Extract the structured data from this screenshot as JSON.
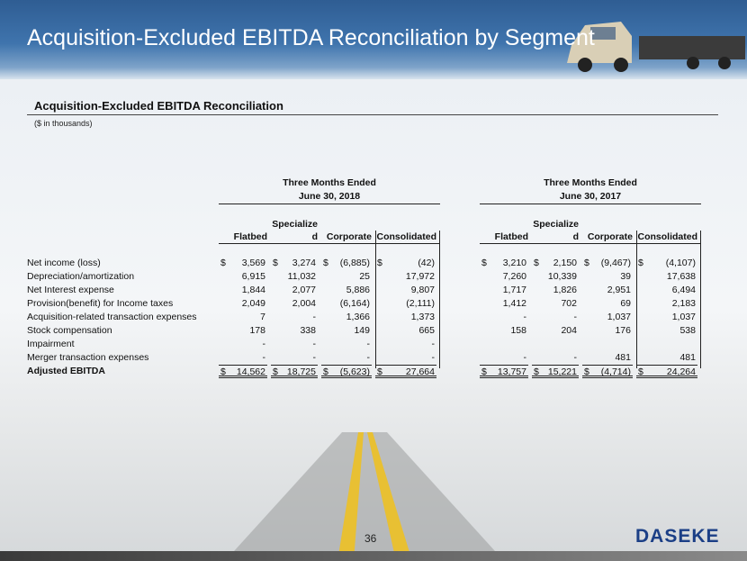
{
  "header": {
    "title": "Acquisition-Excluded EBITDA Reconciliation by Segment"
  },
  "section": {
    "title": "Acquisition-Excluded EBITDA Reconciliation",
    "note": "($ in thousands)"
  },
  "table": {
    "currency": "$",
    "periods": [
      {
        "line1": "Three Months Ended",
        "line2": "June 30, 2018"
      },
      {
        "line1": "Three Months Ended",
        "line2": "June 30, 2017"
      }
    ],
    "columns": [
      "Flatbed",
      "Specialized",
      "Corporate",
      "Consolidated"
    ],
    "rows": [
      {
        "label": "Net income (loss)",
        "dollar": true,
        "values": [
          [
            "3,569",
            "3,274",
            "(6,885)",
            "(42)"
          ],
          [
            "3,210",
            "2,150",
            "(9,467)",
            "(4,107)"
          ]
        ]
      },
      {
        "label": "Depreciation/amortization",
        "values": [
          [
            "6,915",
            "11,032",
            "25",
            "17,972"
          ],
          [
            "7,260",
            "10,339",
            "39",
            "17,638"
          ]
        ]
      },
      {
        "label": "Net Interest expense",
        "values": [
          [
            "1,844",
            "2,077",
            "5,886",
            "9,807"
          ],
          [
            "1,717",
            "1,826",
            "2,951",
            "6,494"
          ]
        ]
      },
      {
        "label": "Provision(benefit) for Income taxes",
        "values": [
          [
            "2,049",
            "2,004",
            "(6,164)",
            "(2,111)"
          ],
          [
            "1,412",
            "702",
            "69",
            "2,183"
          ]
        ]
      },
      {
        "label": "Acquisition-related transaction expenses",
        "values": [
          [
            "7",
            "-",
            "1,366",
            "1,373"
          ],
          [
            "-",
            "-",
            "1,037",
            "1,037"
          ]
        ]
      },
      {
        "label": "Stock compensation",
        "values": [
          [
            "178",
            "338",
            "149",
            "665"
          ],
          [
            "158",
            "204",
            "176",
            "538"
          ]
        ]
      },
      {
        "label": "Impairment",
        "values": [
          [
            "-",
            "-",
            "-",
            "-"
          ],
          [
            null,
            null,
            null,
            null
          ]
        ]
      },
      {
        "label": "Merger transaction expenses",
        "values": [
          [
            "-",
            "-",
            "-",
            "-"
          ],
          [
            "-",
            "-",
            "481",
            "481"
          ]
        ]
      },
      {
        "label": "Adjusted EBITDA",
        "dollar": true,
        "total": true,
        "values": [
          [
            "14,562",
            "18,725",
            "(5,623)",
            "27,664"
          ],
          [
            "13,757",
            "15,221",
            "(4,714)",
            "24,264"
          ]
        ]
      }
    ]
  },
  "footer": {
    "page": "36",
    "logo": "DASEKE"
  }
}
